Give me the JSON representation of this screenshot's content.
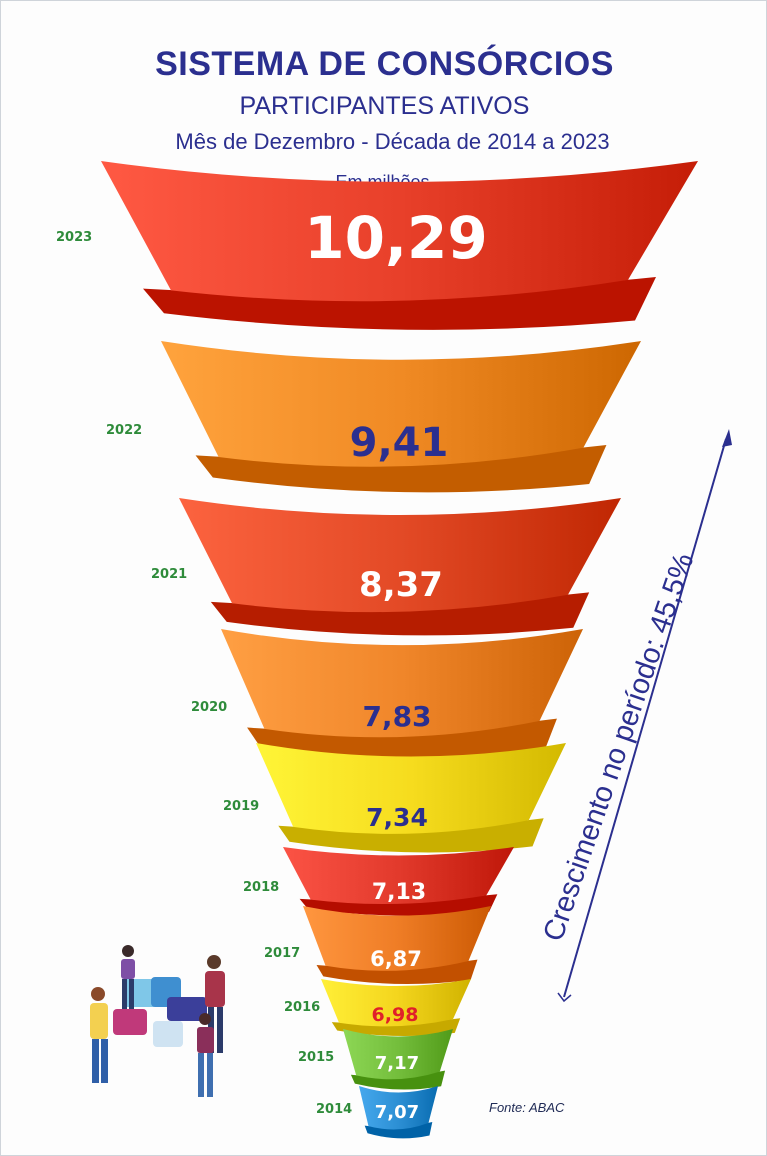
{
  "header": {
    "title": "SISTEMA DE CONSÓRCIOS",
    "subtitle": "PARTICIPANTES ATIVOS",
    "period": "Mês de Dezembro - Década de 2014 a 2023",
    "unit": "Em milhões"
  },
  "annotation": {
    "growth": "Crescimento no período: 45,5%"
  },
  "source": "Fonte: ABAC",
  "chart_data": {
    "type": "bar",
    "title": "SISTEMA DE CONSÓRCIOS",
    "subtitle": "PARTICIPANTES ATIVOS",
    "ylabel": "Em milhões",
    "categories": [
      "2023",
      "2022",
      "2021",
      "2020",
      "2019",
      "2018",
      "2017",
      "2016",
      "2015",
      "2014"
    ],
    "values": [
      10.29,
      9.41,
      8.37,
      7.83,
      7.34,
      7.13,
      6.87,
      6.98,
      7.17,
      7.07
    ],
    "value_labels": [
      "10,29",
      "9,41",
      "8,37",
      "7,83",
      "7,34",
      "7,13",
      "6,87",
      "6,98",
      "7,17",
      "7,07"
    ],
    "value_label_colors": [
      "#ffffff",
      "#2b2f8f",
      "#ffffff",
      "#2b2f8f",
      "#2b2f8f",
      "#ffffff",
      "#ffffff",
      "#e0202a",
      "#ffffff",
      "#ffffff"
    ],
    "segment_colors": [
      "#e8402a",
      "#f08a24",
      "#e34a26",
      "#f0862a",
      "#f6dc1e",
      "#e23a2c",
      "#ef7d26",
      "#f4d61e",
      "#74be3c",
      "#2c8fd4"
    ],
    "year_label_color": "#2e8b3a"
  }
}
